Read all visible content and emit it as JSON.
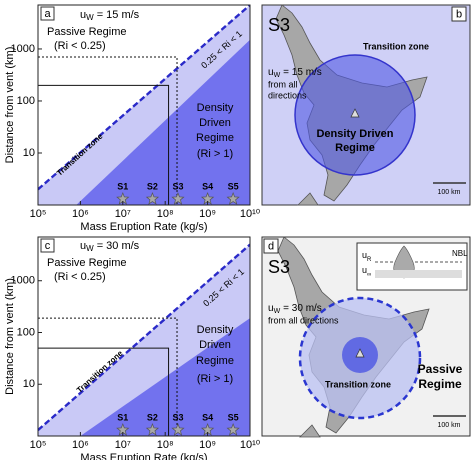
{
  "chart_data": [
    {
      "type": "line",
      "panel_label": "a",
      "wind": {
        "symbol": "u",
        "subscript": "W",
        "text": "= 15 m/s"
      },
      "passive": [
        "Passive Regime",
        "(Ri < 0.25)"
      ],
      "ri_band": "0.25 < Ri < 1",
      "transition": "Transition zone",
      "density": [
        "Density",
        "Driven",
        "Regime",
        "(Ri > 1)"
      ],
      "xlabel": "Mass Eruption Rate (kg/s)",
      "ylabel": "Distance from vent (km)",
      "xscale": "log",
      "yscale": "log",
      "xlim": [
        100000,
        10000000000
      ],
      "ylim": [
        1,
        7000
      ],
      "xticks": [
        {
          "value": 100000,
          "label": "10⁵"
        },
        {
          "value": 1000000,
          "label": "10⁶"
        },
        {
          "value": 10000000,
          "label": "10⁷"
        },
        {
          "value": 100000000,
          "label": "10⁸"
        },
        {
          "value": 1000000000,
          "label": "10⁹"
        },
        {
          "value": 10000000000,
          "label": "10¹⁰"
        }
      ],
      "yticks": [
        10,
        100,
        1000
      ],
      "boundaries": [
        {
          "style": "dashed",
          "color": "#2a2ac8",
          "fill": "#c9c9f6",
          "x": [
            100000,
            10000000000
          ],
          "y": [
            2,
            7000
          ]
        },
        {
          "style": "none",
          "color": "#7272ee",
          "fill": "#7272ee",
          "x": [
            800000,
            10000000000
          ],
          "y": [
            1,
            1500
          ]
        }
      ],
      "reference_lines": [
        {
          "style": "solid",
          "x": [
            100000,
            120000000,
            120000000
          ],
          "y": [
            200,
            200,
            1
          ]
        },
        {
          "style": "dotted",
          "x": [
            100000,
            190000000,
            190000000
          ],
          "y": [
            700,
            700,
            1
          ]
        }
      ],
      "cases": {
        "labels": [
          "S1",
          "S2",
          "S3",
          "S4",
          "S5"
        ],
        "x": [
          10000000,
          50000000,
          200000000,
          1000000000,
          4000000000
        ],
        "color": "#a8a8a8"
      }
    },
    {
      "type": "line",
      "panel_label": "c",
      "wind": {
        "symbol": "u",
        "subscript": "W",
        "text": "= 30 m/s"
      },
      "passive": [
        "Passive Regime",
        "(Ri < 0.25)"
      ],
      "ri_band": "0.25 < Ri < 1",
      "transition": "Transition zone",
      "density": [
        "Density",
        "Driven",
        "Regime",
        "(Ri > 1)"
      ],
      "xlabel": "Mass Eruption Rate (kg/s)",
      "ylabel": "Distance from vent (km)",
      "xscale": "log",
      "yscale": "log",
      "xlim": [
        100000,
        10000000000
      ],
      "ylim": [
        1,
        7000
      ],
      "xticks": [
        {
          "value": 100000,
          "label": "10⁵"
        },
        {
          "value": 1000000,
          "label": "10⁶"
        },
        {
          "value": 10000000,
          "label": "10⁷"
        },
        {
          "value": 100000000,
          "label": "10⁸"
        },
        {
          "value": 1000000000,
          "label": "10⁹"
        },
        {
          "value": 10000000000,
          "label": "10¹⁰"
        }
      ],
      "yticks": [
        10,
        100,
        1000
      ],
      "boundaries": [
        {
          "style": "dashed",
          "color": "#2a2ac8",
          "fill": "#c9c9f6",
          "x": [
            100000,
            10000000000
          ],
          "y": [
            1.3,
            5000
          ]
        },
        {
          "style": "none",
          "color": "#7272ee",
          "fill": "#7272ee",
          "x": [
            1000000,
            10000000000
          ],
          "y": [
            1,
            190
          ]
        }
      ],
      "reference_lines": [
        {
          "style": "solid",
          "x": [
            100000,
            120000000,
            120000000
          ],
          "y": [
            50,
            50,
            1
          ]
        },
        {
          "style": "dotted",
          "x": [
            100000,
            190000000,
            190000000
          ],
          "y": [
            190,
            190,
            1
          ]
        }
      ],
      "cases": {
        "labels": [
          "S1",
          "S2",
          "S3",
          "S4",
          "S5"
        ],
        "x": [
          10000000,
          50000000,
          200000000,
          1000000000,
          4000000000
        ],
        "color": "#a8a8a8"
      }
    }
  ],
  "maps": [
    {
      "panel_label": "b",
      "site": "S3",
      "wind": {
        "symbol": "u",
        "subscript": "W",
        "text": "= 15 m/s"
      },
      "wind_note": [
        "from all",
        "directions"
      ],
      "outer_label": "Transition zone",
      "inner_label": [
        "Density Driven",
        "Regime"
      ],
      "scale": "100 km"
    },
    {
      "panel_label": "d",
      "site": "S3",
      "wind": {
        "symbol": "u",
        "subscript": "W",
        "text": "= 30 m/s"
      },
      "wind_note": [
        "from all directions"
      ],
      "inner_label": "Transition zone",
      "outer_label": [
        "Passive",
        "Regime"
      ],
      "scale": "100 km",
      "inset": {
        "label": "NBL",
        "symbols": [
          {
            "symbol": "u",
            "subscript": "R"
          },
          {
            "symbol": "u",
            "subscript": "∞"
          }
        ]
      }
    }
  ]
}
